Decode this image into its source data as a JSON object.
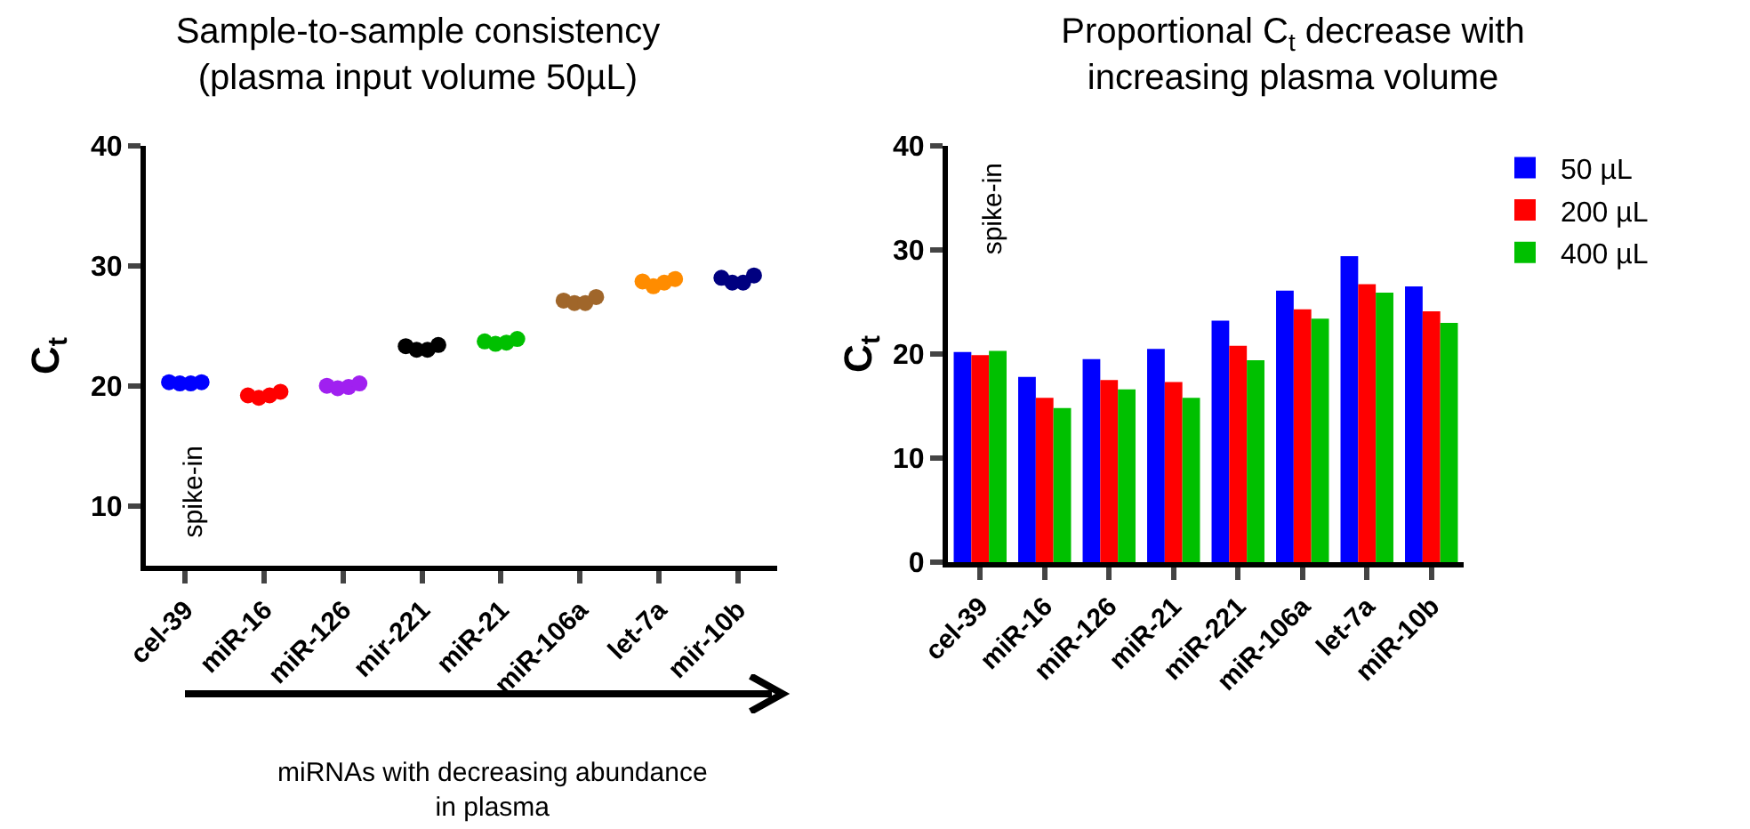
{
  "chart_data": [
    {
      "type": "scatter",
      "title": "Sample-to-sample consistency\n(plasma input volume 50µL)",
      "ylabel": "C$_{t}$",
      "categories": [
        "cel-39",
        "miR-16",
        "miR-126",
        "mir-221",
        "miR-21",
        "miR-106a",
        "let-7a",
        "mir-10b"
      ],
      "series": [
        {
          "colors": [
            "#0000ff",
            "#ff0000",
            "#a020f0",
            "#000000",
            "#00c000",
            "#a0662a",
            "#ff8c00",
            "#000080"
          ],
          "values": [
            20.3,
            19.2,
            20.0,
            23.3,
            23.7,
            27.1,
            28.7,
            29.0
          ]
        },
        {
          "colors": [
            "#0000ff",
            "#ff0000",
            "#a020f0",
            "#000000",
            "#00c000",
            "#a0662a",
            "#ff8c00",
            "#000080"
          ],
          "values": [
            20.2,
            19.0,
            19.8,
            23.0,
            23.5,
            26.9,
            28.3,
            28.6
          ]
        },
        {
          "colors": [
            "#0000ff",
            "#ff0000",
            "#a020f0",
            "#000000",
            "#00c000",
            "#a0662a",
            "#ff8c00",
            "#000080"
          ],
          "values": [
            20.2,
            19.2,
            19.9,
            23.0,
            23.6,
            26.9,
            28.6,
            28.6
          ]
        },
        {
          "colors": [
            "#0000ff",
            "#ff0000",
            "#a020f0",
            "#000000",
            "#00c000",
            "#a0662a",
            "#ff8c00",
            "#000080"
          ],
          "values": [
            20.3,
            19.5,
            20.2,
            23.4,
            23.9,
            27.4,
            28.9,
            29.2
          ]
        }
      ],
      "ylim": [
        5,
        40
      ],
      "yticks": [
        10,
        20,
        30,
        40
      ],
      "marker": "circle",
      "grid": false,
      "legend": false,
      "annotations": [
        "spike-in",
        "miRNAs with decreasing abundance\nin plasma"
      ]
    },
    {
      "type": "bar",
      "title": "Proportional C$_{t}$ decrease with\nincreasing plasma volume",
      "ylabel": "C$_{t}$",
      "categories": [
        "cel-39",
        "miR-16",
        "miR-126",
        "miR-21",
        "miR-221",
        "miR-106a",
        "let-7a",
        "miR-10b"
      ],
      "series": [
        {
          "name": "50 µL",
          "color": "#0000ff",
          "values": [
            20.2,
            17.8,
            19.5,
            20.5,
            23.2,
            26.1,
            29.4,
            26.5
          ]
        },
        {
          "name": "200 µL",
          "color": "#ff0000",
          "values": [
            19.9,
            15.8,
            17.5,
            17.3,
            20.8,
            24.3,
            26.7,
            24.1
          ]
        },
        {
          "name": "400 µL",
          "color": "#00c000",
          "values": [
            20.3,
            14.8,
            16.6,
            15.8,
            19.4,
            23.4,
            25.9,
            23.0
          ]
        }
      ],
      "ylim": [
        0,
        40
      ],
      "yticks": [
        0,
        10,
        20,
        30,
        40
      ],
      "grid": false,
      "legend": "top right",
      "annotations": [
        "spike-in"
      ]
    }
  ]
}
